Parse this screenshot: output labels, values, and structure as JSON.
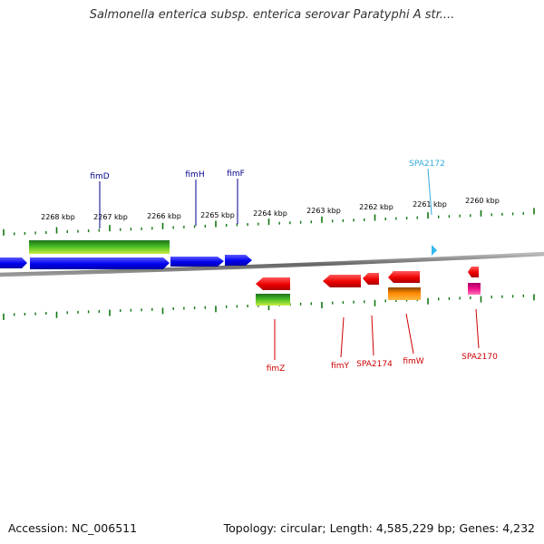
{
  "title": "Salmonella enterica subsp. enterica serovar Paratyphi A str....",
  "ticks": [
    "2268 kbp",
    "2267 kbp",
    "2266 kbp",
    "2265 kbp",
    "2264 kbp",
    "2263 kbp",
    "2262 kbp",
    "2261 kbp",
    "2260 kbp"
  ],
  "genes_top": [
    {
      "label": "fimD",
      "color": "#00008b"
    },
    {
      "label": "fimH",
      "color": "#00008b"
    },
    {
      "label": "fimF",
      "color": "#00008b"
    },
    {
      "label": "SPA2172",
      "color": "#33aadd"
    }
  ],
  "genes_bottom": [
    {
      "label": "fimZ",
      "color": "#cc0000"
    },
    {
      "label": "fimY",
      "color": "#cc0000"
    },
    {
      "label": "SPA2174",
      "color": "#cc0000"
    },
    {
      "label": "fimW",
      "color": "#cc0000"
    },
    {
      "label": "SPA2170",
      "color": "#cc0000"
    }
  ],
  "colors": {
    "forward_cds": "#0000ee",
    "reverse_cds": "#ee0000",
    "forward_rna": "#33bbee",
    "gene_feature_top": "#44bb22",
    "gene_feature_bottom": "#ff8800",
    "pseudo": "#ee1188",
    "tick_marks": "#117711",
    "backbone": "#777777"
  },
  "footer": {
    "accession": "Accession: NC_006511",
    "stats": "Topology: circular; Length: 4,585,229 bp; Genes: 4,232"
  }
}
